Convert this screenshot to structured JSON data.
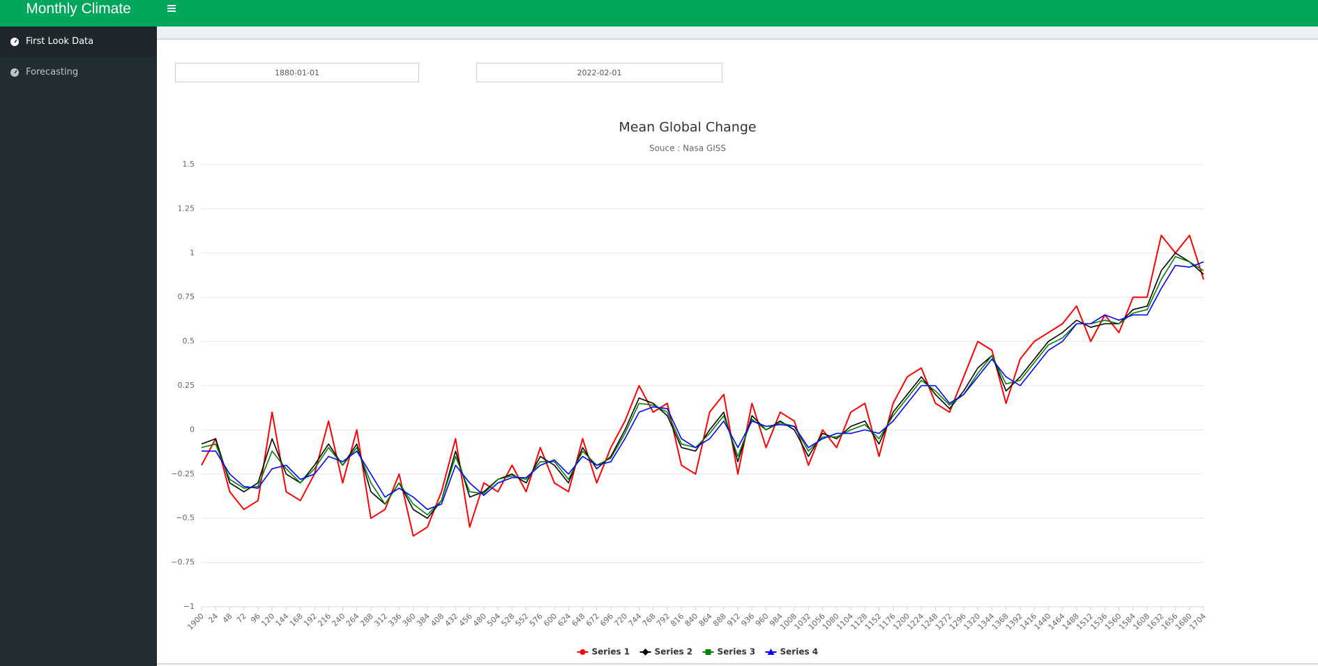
{
  "header": {
    "title": "Monthly Climate"
  },
  "sidebar": {
    "items": [
      "First Look Data",
      "Forecasting"
    ]
  },
  "inputs": {
    "start": "1880-01-01",
    "end": "2022-02-01"
  },
  "chart_data": {
    "type": "line",
    "title": "Mean Global Change",
    "subtitle": "Souce : Nasa GISS",
    "x": [
      0,
      24,
      48,
      72,
      96,
      120,
      144,
      168,
      192,
      216,
      240,
      264,
      288,
      312,
      336,
      360,
      384,
      408,
      432,
      456,
      480,
      504,
      528,
      552,
      576,
      600,
      624,
      648,
      672,
      696,
      720,
      744,
      768,
      792,
      816,
      840,
      864,
      888,
      912,
      936,
      960,
      984,
      1008,
      1032,
      1056,
      1080,
      1104,
      1128,
      1152,
      1176,
      1200,
      1224,
      1248,
      1272,
      1296,
      1320,
      1344,
      1368,
      1392,
      1416,
      1440,
      1464,
      1488,
      1512,
      1536,
      1560,
      1584,
      1608,
      1632,
      1656,
      1680,
      1704
    ],
    "xlim": [
      0,
      1704
    ],
    "xticks": [
      {
        "value": 0,
        "label": "1900"
      },
      24,
      48,
      72,
      96,
      120,
      144,
      168,
      192,
      216,
      240,
      264,
      288,
      312,
      336,
      360,
      384,
      408,
      432,
      456,
      480,
      504,
      528,
      552,
      576,
      600,
      624,
      648,
      672,
      696,
      720,
      744,
      768,
      792,
      816,
      840,
      864,
      888,
      912,
      936,
      960,
      984,
      1008,
      1032,
      1056,
      1080,
      1104,
      1128,
      1152,
      1176,
      1200,
      1224,
      1248,
      1272,
      1296,
      1320,
      1344,
      1368,
      1392,
      1416,
      1440,
      1464,
      1488,
      1512,
      1536,
      1560,
      1584,
      1608,
      1632,
      1656,
      1680,
      1704
    ],
    "ylim": [
      -1,
      1.5
    ],
    "yticks": [
      {
        "value": -1,
        "label": "−1"
      },
      {
        "value": -0.75,
        "label": "−0.75"
      },
      {
        "value": -0.5,
        "label": "−0.5"
      },
      {
        "value": -0.25,
        "label": "−0.25"
      },
      0,
      0.25,
      0.5,
      0.75,
      1,
      1.25,
      1.5
    ],
    "grid": true,
    "legend": "bottom",
    "series": [
      {
        "name": "Series 1",
        "color": "#ff0000",
        "marker": "circle",
        "values": [
          -0.2,
          -0.05,
          -0.35,
          -0.45,
          -0.4,
          0.1,
          -0.35,
          -0.4,
          -0.25,
          0.05,
          -0.3,
          0.0,
          -0.5,
          -0.45,
          -0.25,
          -0.6,
          -0.55,
          -0.35,
          -0.05,
          -0.55,
          -0.3,
          -0.35,
          -0.2,
          -0.35,
          -0.1,
          -0.3,
          -0.35,
          -0.05,
          -0.3,
          -0.1,
          0.05,
          0.25,
          0.1,
          0.15,
          -0.2,
          -0.25,
          0.1,
          0.2,
          -0.25,
          0.15,
          -0.1,
          0.1,
          0.05,
          -0.2,
          0.0,
          -0.1,
          0.1,
          0.15,
          -0.15,
          0.15,
          0.3,
          0.35,
          0.15,
          0.1,
          0.3,
          0.5,
          0.45,
          0.15,
          0.4,
          0.5,
          0.55,
          0.6,
          0.7,
          0.5,
          0.65,
          0.55,
          0.75,
          0.75,
          1.1,
          1.0,
          1.1,
          0.85
        ]
      },
      {
        "name": "Series 2",
        "color": "#000000",
        "marker": "diamond",
        "values": [
          -0.08,
          -0.05,
          -0.3,
          -0.35,
          -0.3,
          -0.05,
          -0.25,
          -0.3,
          -0.2,
          -0.08,
          -0.2,
          -0.08,
          -0.35,
          -0.42,
          -0.3,
          -0.45,
          -0.5,
          -0.4,
          -0.12,
          -0.38,
          -0.35,
          -0.28,
          -0.25,
          -0.3,
          -0.15,
          -0.2,
          -0.3,
          -0.1,
          -0.22,
          -0.15,
          0.0,
          0.18,
          0.15,
          0.08,
          -0.1,
          -0.12,
          0.0,
          0.1,
          -0.18,
          0.08,
          0.0,
          0.05,
          0.0,
          -0.15,
          -0.02,
          -0.05,
          0.02,
          0.05,
          -0.08,
          0.1,
          0.2,
          0.3,
          0.2,
          0.12,
          0.22,
          0.35,
          0.42,
          0.22,
          0.3,
          0.4,
          0.5,
          0.55,
          0.62,
          0.58,
          0.6,
          0.6,
          0.68,
          0.7,
          0.9,
          1.0,
          0.95,
          0.88
        ]
      },
      {
        "name": "Series 3",
        "color": "#008000",
        "marker": "square",
        "values": [
          -0.1,
          -0.08,
          -0.28,
          -0.33,
          -0.32,
          -0.12,
          -0.22,
          -0.3,
          -0.22,
          -0.1,
          -0.2,
          -0.1,
          -0.3,
          -0.42,
          -0.3,
          -0.42,
          -0.48,
          -0.4,
          -0.15,
          -0.35,
          -0.36,
          -0.28,
          -0.26,
          -0.28,
          -0.18,
          -0.18,
          -0.28,
          -0.12,
          -0.2,
          -0.16,
          -0.02,
          0.15,
          0.14,
          0.1,
          -0.08,
          -0.1,
          -0.02,
          0.08,
          -0.15,
          0.06,
          0.0,
          0.04,
          0.02,
          -0.12,
          -0.04,
          -0.04,
          0.0,
          0.03,
          -0.05,
          0.08,
          0.18,
          0.28,
          0.22,
          0.14,
          0.2,
          0.32,
          0.42,
          0.26,
          0.28,
          0.38,
          0.48,
          0.52,
          0.6,
          0.6,
          0.62,
          0.6,
          0.66,
          0.68,
          0.85,
          0.98,
          0.95,
          0.9
        ]
      },
      {
        "name": "Series 4",
        "color": "#0000ff",
        "marker": "triangle",
        "values": [
          -0.12,
          -0.12,
          -0.25,
          -0.32,
          -0.33,
          -0.22,
          -0.2,
          -0.28,
          -0.25,
          -0.15,
          -0.18,
          -0.12,
          -0.25,
          -0.38,
          -0.33,
          -0.38,
          -0.45,
          -0.42,
          -0.2,
          -0.3,
          -0.37,
          -0.3,
          -0.27,
          -0.27,
          -0.2,
          -0.17,
          -0.25,
          -0.15,
          -0.2,
          -0.18,
          -0.05,
          0.1,
          0.13,
          0.12,
          -0.05,
          -0.1,
          -0.05,
          0.05,
          -0.1,
          0.05,
          0.02,
          0.03,
          0.02,
          -0.1,
          -0.05,
          -0.02,
          -0.02,
          0.0,
          -0.02,
          0.05,
          0.15,
          0.25,
          0.25,
          0.15,
          0.2,
          0.3,
          0.4,
          0.3,
          0.25,
          0.35,
          0.45,
          0.5,
          0.6,
          0.6,
          0.65,
          0.62,
          0.65,
          0.65,
          0.8,
          0.93,
          0.92,
          0.95
        ]
      }
    ]
  }
}
